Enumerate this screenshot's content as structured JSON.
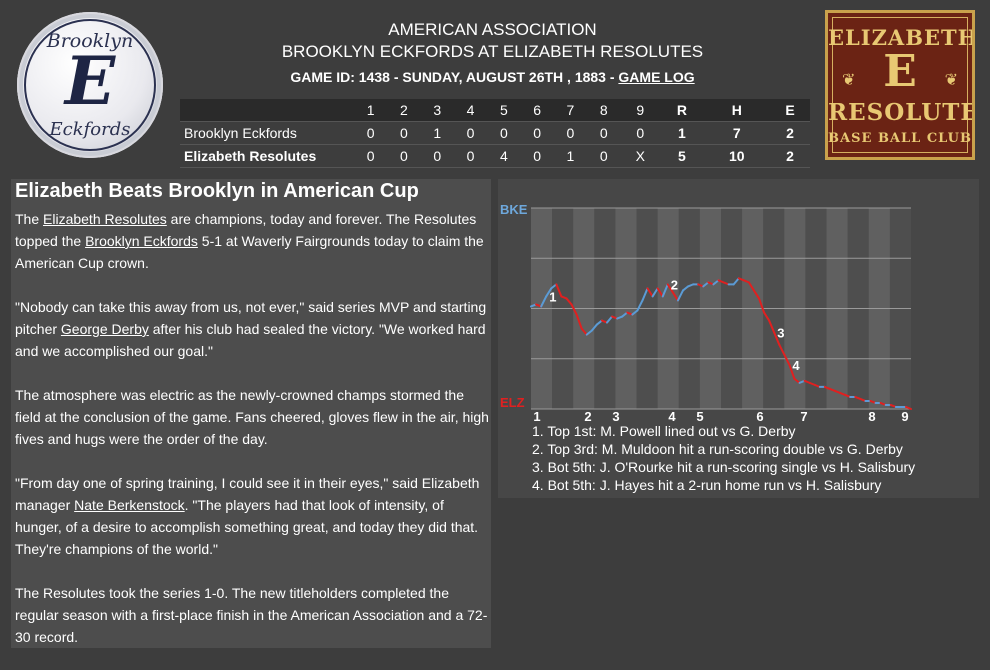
{
  "header": {
    "league": "AMERICAN ASSOCIATION",
    "matchup": "BROOKLYN ECKFORDS AT ELIZABETH RESOLUTES",
    "game_info": "GAME ID: 1438 - SUNDAY, AUGUST 26TH , 1883 -",
    "game_log_link": "GAME LOG"
  },
  "logos": {
    "left": {
      "line1": "Brooklyn",
      "letter": "E",
      "line2": "Eckfords"
    },
    "right": {
      "line1": "ELIZABETH",
      "letter": "E",
      "line2": "RESOLUTES",
      "line3": "BASE BALL CLUB"
    }
  },
  "linescore": {
    "headers": [
      "",
      "1",
      "2",
      "3",
      "4",
      "5",
      "6",
      "7",
      "8",
      "9",
      "R",
      "H",
      "E"
    ],
    "away": {
      "team": "Brooklyn Eckfords",
      "innings": [
        "0",
        "0",
        "1",
        "0",
        "0",
        "0",
        "0",
        "0",
        "0"
      ],
      "R": "1",
      "H": "7",
      "E": "2"
    },
    "home": {
      "team": "Elizabeth Resolutes",
      "innings": [
        "0",
        "0",
        "0",
        "0",
        "4",
        "0",
        "1",
        "0",
        "X"
      ],
      "R": "5",
      "H": "10",
      "E": "2"
    }
  },
  "story": {
    "headline": "Elizabeth Beats Brooklyn in American Cup",
    "p1": {
      "a": "The ",
      "link1": "Elizabeth Resolutes",
      "b": " are champions, today and forever. The Resolutes topped the ",
      "link2": "Brooklyn Eckfords",
      "c": " 5-1 at Waverly Fairgrounds today to claim the American Cup crown."
    },
    "p2": {
      "a": "\"Nobody can take this away from us, not ever,\" said series MVP and starting pitcher ",
      "link": "George Derby",
      "b": " after his club had sealed the victory. \"We worked hard and we accomplished our goal.\""
    },
    "p3": "The atmosphere was electric as the newly-crowned champs stormed the field at the conclusion of the game. Fans cheered, gloves flew in the air, high fives and hugs were the order of the day.",
    "p4": {
      "a": "\"From day one of spring training, I could see it in their eyes,\" said Elizabeth manager ",
      "link": "Nate Berkenstock",
      "b": ". \"The players had that look of intensity, of hunger, of a desire to accomplish something great, and today they did that. They're champions of the world.\""
    },
    "p5": "The Resolutes took the series 1-0. The new titleholders completed the regular season with a first-place finish in the American Association and a 72-30 record."
  },
  "chart_data": {
    "type": "line",
    "top_label": "BKE",
    "bottom_label": "ELZ",
    "colors": {
      "away": "#5b9bd5",
      "home": "#e02020",
      "top_label": "#6ea8dc",
      "bottom_label": "#e02020"
    },
    "ylim": [
      0,
      100
    ],
    "inning_labels": [
      "1",
      "2",
      "3",
      "4",
      "5",
      "6",
      "7",
      "8",
      "9"
    ],
    "series": [
      {
        "values": [
          51,
          52,
          51,
          56,
          60,
          62,
          56,
          55,
          52,
          47,
          40,
          37,
          39,
          42,
          44,
          43,
          46,
          45,
          46,
          48,
          47,
          49,
          54,
          60,
          56,
          60,
          56,
          62,
          58,
          54,
          59,
          61,
          62,
          62,
          61,
          63,
          62,
          64,
          63,
          62,
          62,
          65,
          64,
          63,
          59,
          55,
          48,
          44,
          38,
          32,
          27,
          22,
          15,
          13,
          14,
          13,
          12,
          11,
          11,
          10,
          9,
          8,
          7,
          6,
          6,
          5,
          4,
          4,
          3,
          3,
          2,
          2,
          1,
          1,
          1,
          0
        ]
      }
    ],
    "markers": [
      {
        "label": "1",
        "index": 3
      },
      {
        "label": "2",
        "index": 27
      },
      {
        "label": "3",
        "index": 48
      },
      {
        "label": "4",
        "index": 51
      }
    ],
    "plays": [
      "1. Top 1st: M. Powell lined out vs G. Derby",
      "2. Top 3rd: M. Muldoon hit a run-scoring double vs G. Derby",
      "3. Bot 5th: J. O'Rourke hit a run-scoring single vs H. Salisbury",
      "4. Bot 5th: J. Hayes hit a 2-run home run vs H. Salisbury"
    ]
  }
}
